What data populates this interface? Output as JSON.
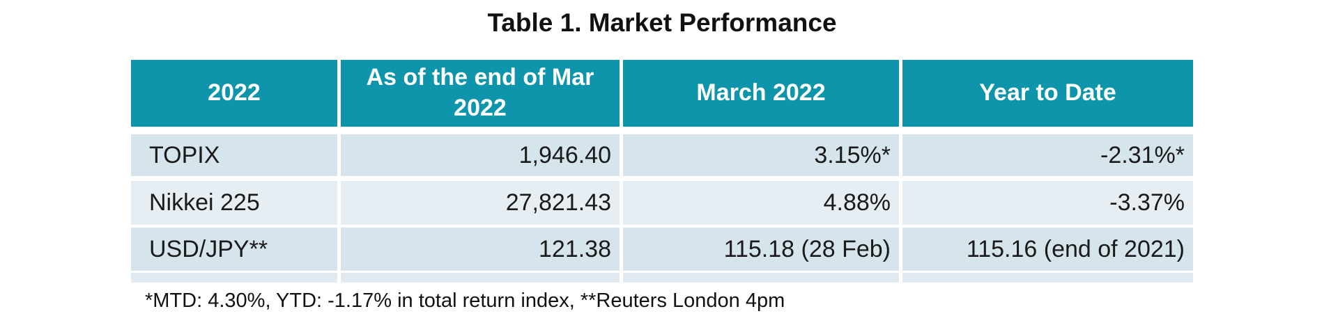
{
  "title": "Table 1. Market Performance",
  "table": {
    "columns": [
      "2022",
      "As of the end of Mar 2022",
      "March 2022",
      "Year to Date"
    ],
    "rows": [
      {
        "label": "TOPIX",
        "end_of_mar": "1,946.40",
        "march": "3.15%*",
        "ytd": "-2.31%*"
      },
      {
        "label": "Nikkei 225",
        "end_of_mar": "27,821.43",
        "march": "4.88%",
        "ytd": "-3.37%"
      },
      {
        "label": "USD/JPY**",
        "end_of_mar": "121.38",
        "march": "115.18 (28 Feb)",
        "ytd": "115.16 (end of 2021)"
      }
    ]
  },
  "footnote": "*MTD: 4.30%, YTD: -1.17% in total return index, **Reuters London 4pm",
  "colors": {
    "header_bg": "#0E95AB",
    "header_text": "#FFFFFF",
    "row_dark": "#D6E4EB",
    "row_light": "#E6EEF3",
    "bottom_strip": "#DFE9EF",
    "body_text": "#1A1A1A"
  }
}
